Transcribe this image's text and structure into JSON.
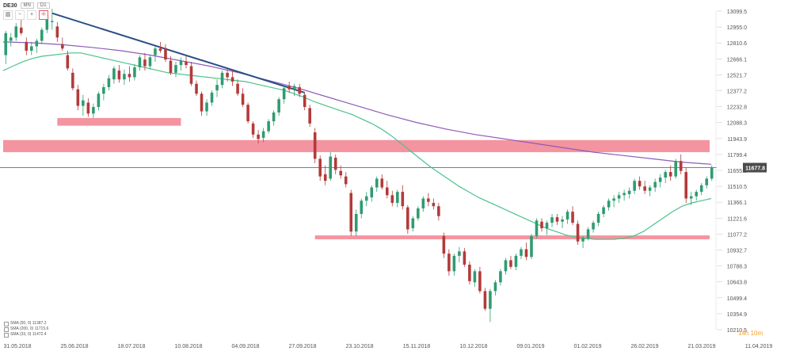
{
  "toolbar": {
    "symbol": "DE30",
    "timeframe_box": "D1",
    "aux_box": "MN",
    "buttons": [
      "bar-icon",
      "zoom-out-icon",
      "zoom-in-icon",
      "crosshair-icon"
    ]
  },
  "current_price_label": "11677.8",
  "timer_label": "14h 10m",
  "indicators": [
    {
      "label": "SMA (50, 0) 11387.2"
    },
    {
      "label": "SMA (200, 0) 11715.6"
    },
    {
      "label": "SMA (33, 0) 11472.4"
    }
  ],
  "colors": {
    "bull": "#2e9c70",
    "bear": "#b33a3a",
    "sma50": "#4cc28c",
    "sma200": "#8d5cb8",
    "trendline": "#2c4f86",
    "zone": "#f07080",
    "price_line": "#555555"
  },
  "chart_data": {
    "type": "candlestick",
    "symbol": "DE30",
    "y_ticks": [
      13099.5,
      12955.0,
      12810.6,
      12666.1,
      12521.7,
      12377.2,
      12232.8,
      12088.3,
      11943.9,
      11799.4,
      11655.0,
      11510.5,
      11366.1,
      11221.6,
      11077.2,
      10932.7,
      10788.3,
      10643.8,
      10499.4,
      10354.9,
      10210.5
    ],
    "ylim": [
      10210.5,
      13099.5
    ],
    "x_labels": [
      "31.05.2018",
      "25.06.2018",
      "18.07.2018",
      "10.08.2018",
      "04.09.2018",
      "27.09.2018",
      "23.10.2018",
      "15.11.2018",
      "10.12.2018",
      "09.01.2019",
      "01.02.2019",
      "26.02.2019",
      "21.03.2019",
      "11.04.2019"
    ],
    "candles": [
      {
        "o": 12700,
        "h": 12920,
        "l": 12620,
        "c": 12900
      },
      {
        "o": 12830,
        "h": 12900,
        "l": 12780,
        "c": 12860
      },
      {
        "o": 12860,
        "h": 12990,
        "l": 12830,
        "c": 12960
      },
      {
        "o": 12950,
        "h": 13020,
        "l": 12880,
        "c": 12900
      },
      {
        "o": 12820,
        "h": 12860,
        "l": 12700,
        "c": 12740
      },
      {
        "o": 12740,
        "h": 12820,
        "l": 12700,
        "c": 12780
      },
      {
        "o": 12780,
        "h": 12850,
        "l": 12720,
        "c": 12830
      },
      {
        "o": 12830,
        "h": 12950,
        "l": 12800,
        "c": 12930
      },
      {
        "o": 12930,
        "h": 13080,
        "l": 12900,
        "c": 13050
      },
      {
        "o": 13000,
        "h": 13120,
        "l": 12930,
        "c": 13010
      },
      {
        "o": 12960,
        "h": 13000,
        "l": 12820,
        "c": 12860
      },
      {
        "o": 12800,
        "h": 12860,
        "l": 12740,
        "c": 12760
      },
      {
        "o": 12700,
        "h": 12740,
        "l": 12560,
        "c": 12580
      },
      {
        "o": 12540,
        "h": 12580,
        "l": 12380,
        "c": 12400
      },
      {
        "o": 12390,
        "h": 12430,
        "l": 12200,
        "c": 12240
      },
      {
        "o": 12240,
        "h": 12340,
        "l": 12150,
        "c": 12290
      },
      {
        "o": 12270,
        "h": 12310,
        "l": 12140,
        "c": 12170
      },
      {
        "o": 12170,
        "h": 12260,
        "l": 12130,
        "c": 12230
      },
      {
        "o": 12230,
        "h": 12370,
        "l": 12200,
        "c": 12350
      },
      {
        "o": 12350,
        "h": 12440,
        "l": 12290,
        "c": 12410
      },
      {
        "o": 12410,
        "h": 12520,
        "l": 12380,
        "c": 12490
      },
      {
        "o": 12480,
        "h": 12600,
        "l": 12440,
        "c": 12580
      },
      {
        "o": 12560,
        "h": 12610,
        "l": 12450,
        "c": 12480
      },
      {
        "o": 12480,
        "h": 12570,
        "l": 12430,
        "c": 12530
      },
      {
        "o": 12530,
        "h": 12600,
        "l": 12460,
        "c": 12500
      },
      {
        "o": 12500,
        "h": 12620,
        "l": 12470,
        "c": 12590
      },
      {
        "o": 12590,
        "h": 12700,
        "l": 12560,
        "c": 12680
      },
      {
        "o": 12660,
        "h": 12720,
        "l": 12560,
        "c": 12600
      },
      {
        "o": 12600,
        "h": 12700,
        "l": 12570,
        "c": 12680
      },
      {
        "o": 12700,
        "h": 12780,
        "l": 12640,
        "c": 12760
      },
      {
        "o": 12760,
        "h": 12820,
        "l": 12720,
        "c": 12740
      },
      {
        "o": 12760,
        "h": 12800,
        "l": 12640,
        "c": 12660
      },
      {
        "o": 12650,
        "h": 12690,
        "l": 12520,
        "c": 12540
      },
      {
        "o": 12540,
        "h": 12640,
        "l": 12500,
        "c": 12610
      },
      {
        "o": 12610,
        "h": 12680,
        "l": 12560,
        "c": 12650
      },
      {
        "o": 12640,
        "h": 12690,
        "l": 12580,
        "c": 12610
      },
      {
        "o": 12600,
        "h": 12640,
        "l": 12420,
        "c": 12440
      },
      {
        "o": 12440,
        "h": 12470,
        "l": 12330,
        "c": 12350
      },
      {
        "o": 12350,
        "h": 12370,
        "l": 12150,
        "c": 12190
      },
      {
        "o": 12190,
        "h": 12300,
        "l": 12150,
        "c": 12270
      },
      {
        "o": 12270,
        "h": 12380,
        "l": 12240,
        "c": 12360
      },
      {
        "o": 12380,
        "h": 12480,
        "l": 12320,
        "c": 12430
      },
      {
        "o": 12430,
        "h": 12560,
        "l": 12400,
        "c": 12540
      },
      {
        "o": 12540,
        "h": 12580,
        "l": 12460,
        "c": 12500
      },
      {
        "o": 12500,
        "h": 12560,
        "l": 12420,
        "c": 12460
      },
      {
        "o": 12440,
        "h": 12480,
        "l": 12330,
        "c": 12350
      },
      {
        "o": 12350,
        "h": 12400,
        "l": 12230,
        "c": 12250
      },
      {
        "o": 12250,
        "h": 12270,
        "l": 12080,
        "c": 12100
      },
      {
        "o": 12080,
        "h": 12100,
        "l": 11950,
        "c": 11980
      },
      {
        "o": 11980,
        "h": 12020,
        "l": 11900,
        "c": 11940
      },
      {
        "o": 11950,
        "h": 12040,
        "l": 11910,
        "c": 12010
      },
      {
        "o": 12010,
        "h": 12120,
        "l": 11990,
        "c": 12100
      },
      {
        "o": 12100,
        "h": 12200,
        "l": 12060,
        "c": 12180
      },
      {
        "o": 12180,
        "h": 12320,
        "l": 12150,
        "c": 12300
      },
      {
        "o": 12300,
        "h": 12420,
        "l": 12260,
        "c": 12400
      },
      {
        "o": 12420,
        "h": 12460,
        "l": 12360,
        "c": 12390
      },
      {
        "o": 12390,
        "h": 12440,
        "l": 12330,
        "c": 12420
      },
      {
        "o": 12410,
        "h": 12440,
        "l": 12320,
        "c": 12350
      },
      {
        "o": 12340,
        "h": 12360,
        "l": 12200,
        "c": 12230
      },
      {
        "o": 12220,
        "h": 12250,
        "l": 12050,
        "c": 12080
      },
      {
        "o": 12000,
        "h": 12040,
        "l": 11720,
        "c": 11760
      },
      {
        "o": 11760,
        "h": 11790,
        "l": 11560,
        "c": 11600
      },
      {
        "o": 11620,
        "h": 11700,
        "l": 11520,
        "c": 11560
      },
      {
        "o": 11580,
        "h": 11820,
        "l": 11560,
        "c": 11780
      },
      {
        "o": 11770,
        "h": 11800,
        "l": 11620,
        "c": 11660
      },
      {
        "o": 11650,
        "h": 11700,
        "l": 11580,
        "c": 11610
      },
      {
        "o": 11600,
        "h": 11640,
        "l": 11500,
        "c": 11530
      },
      {
        "o": 11450,
        "h": 11480,
        "l": 11060,
        "c": 11100
      },
      {
        "o": 11100,
        "h": 11300,
        "l": 11060,
        "c": 11260
      },
      {
        "o": 11260,
        "h": 11400,
        "l": 11220,
        "c": 11380
      },
      {
        "o": 11380,
        "h": 11460,
        "l": 11330,
        "c": 11420
      },
      {
        "o": 11410,
        "h": 11520,
        "l": 11370,
        "c": 11500
      },
      {
        "o": 11500,
        "h": 11600,
        "l": 11460,
        "c": 11580
      },
      {
        "o": 11580,
        "h": 11620,
        "l": 11480,
        "c": 11500
      },
      {
        "o": 11500,
        "h": 11560,
        "l": 11400,
        "c": 11430
      },
      {
        "o": 11430,
        "h": 11470,
        "l": 11330,
        "c": 11360
      },
      {
        "o": 11360,
        "h": 11480,
        "l": 11320,
        "c": 11460
      },
      {
        "o": 11460,
        "h": 11520,
        "l": 11300,
        "c": 11330
      },
      {
        "o": 11320,
        "h": 11340,
        "l": 11080,
        "c": 11120
      },
      {
        "o": 11130,
        "h": 11240,
        "l": 11100,
        "c": 11220
      },
      {
        "o": 11220,
        "h": 11330,
        "l": 11200,
        "c": 11310
      },
      {
        "o": 11310,
        "h": 11420,
        "l": 11280,
        "c": 11400
      },
      {
        "o": 11400,
        "h": 11450,
        "l": 11330,
        "c": 11370
      },
      {
        "o": 11360,
        "h": 11400,
        "l": 11300,
        "c": 11330
      },
      {
        "o": 11330,
        "h": 11360,
        "l": 11200,
        "c": 11240
      },
      {
        "o": 11060,
        "h": 11090,
        "l": 10860,
        "c": 10900
      },
      {
        "o": 10900,
        "h": 10940,
        "l": 10700,
        "c": 10740
      },
      {
        "o": 10740,
        "h": 10900,
        "l": 10700,
        "c": 10880
      },
      {
        "o": 10880,
        "h": 10960,
        "l": 10820,
        "c": 10920
      },
      {
        "o": 10920,
        "h": 10950,
        "l": 10780,
        "c": 10800
      },
      {
        "o": 10800,
        "h": 10830,
        "l": 10620,
        "c": 10650
      },
      {
        "o": 10640,
        "h": 10760,
        "l": 10600,
        "c": 10740
      },
      {
        "o": 10740,
        "h": 10780,
        "l": 10540,
        "c": 10560
      },
      {
        "o": 10560,
        "h": 10590,
        "l": 10380,
        "c": 10400
      },
      {
        "o": 10400,
        "h": 10580,
        "l": 10280,
        "c": 10560
      },
      {
        "o": 10560,
        "h": 10660,
        "l": 10520,
        "c": 10640
      },
      {
        "o": 10640,
        "h": 10760,
        "l": 10610,
        "c": 10740
      },
      {
        "o": 10740,
        "h": 10860,
        "l": 10710,
        "c": 10840
      },
      {
        "o": 10840,
        "h": 10880,
        "l": 10760,
        "c": 10780
      },
      {
        "o": 10780,
        "h": 10900,
        "l": 10750,
        "c": 10880
      },
      {
        "o": 10880,
        "h": 10960,
        "l": 10850,
        "c": 10940
      },
      {
        "o": 10940,
        "h": 11000,
        "l": 10840,
        "c": 10870
      },
      {
        "o": 10870,
        "h": 11080,
        "l": 10850,
        "c": 11060
      },
      {
        "o": 11060,
        "h": 11220,
        "l": 11040,
        "c": 11200
      },
      {
        "o": 11190,
        "h": 11220,
        "l": 11100,
        "c": 11130
      },
      {
        "o": 11130,
        "h": 11200,
        "l": 11070,
        "c": 11180
      },
      {
        "o": 11180,
        "h": 11260,
        "l": 11140,
        "c": 11230
      },
      {
        "o": 11230,
        "h": 11260,
        "l": 11160,
        "c": 11190
      },
      {
        "o": 11190,
        "h": 11240,
        "l": 11130,
        "c": 11210
      },
      {
        "o": 11210,
        "h": 11300,
        "l": 11170,
        "c": 11280
      },
      {
        "o": 11280,
        "h": 11330,
        "l": 11160,
        "c": 11180
      },
      {
        "o": 11170,
        "h": 11200,
        "l": 10980,
        "c": 11010
      },
      {
        "o": 11010,
        "h": 11060,
        "l": 10950,
        "c": 11040
      },
      {
        "o": 11040,
        "h": 11140,
        "l": 11020,
        "c": 11120
      },
      {
        "o": 11120,
        "h": 11200,
        "l": 11090,
        "c": 11180
      },
      {
        "o": 11180,
        "h": 11280,
        "l": 11150,
        "c": 11260
      },
      {
        "o": 11260,
        "h": 11340,
        "l": 11230,
        "c": 11320
      },
      {
        "o": 11320,
        "h": 11400,
        "l": 11290,
        "c": 11380
      },
      {
        "o": 11380,
        "h": 11430,
        "l": 11320,
        "c": 11400
      },
      {
        "o": 11400,
        "h": 11460,
        "l": 11360,
        "c": 11430
      },
      {
        "o": 11430,
        "h": 11480,
        "l": 11380,
        "c": 11450
      },
      {
        "o": 11440,
        "h": 11500,
        "l": 11400,
        "c": 11470
      },
      {
        "o": 11470,
        "h": 11580,
        "l": 11440,
        "c": 11560
      },
      {
        "o": 11560,
        "h": 11600,
        "l": 11480,
        "c": 11510
      },
      {
        "o": 11510,
        "h": 11560,
        "l": 11440,
        "c": 11470
      },
      {
        "o": 11470,
        "h": 11520,
        "l": 11420,
        "c": 11500
      },
      {
        "o": 11500,
        "h": 11580,
        "l": 11460,
        "c": 11550
      },
      {
        "o": 11550,
        "h": 11620,
        "l": 11500,
        "c": 11590
      },
      {
        "o": 11590,
        "h": 11660,
        "l": 11540,
        "c": 11640
      },
      {
        "o": 11640,
        "h": 11700,
        "l": 11560,
        "c": 11600
      },
      {
        "o": 11600,
        "h": 11760,
        "l": 11580,
        "c": 11740
      },
      {
        "o": 11740,
        "h": 11800,
        "l": 11620,
        "c": 11650
      },
      {
        "o": 11640,
        "h": 11680,
        "l": 11360,
        "c": 11400
      },
      {
        "o": 11400,
        "h": 11460,
        "l": 11340,
        "c": 11420
      },
      {
        "o": 11420,
        "h": 11480,
        "l": 11380,
        "c": 11460
      },
      {
        "o": 11460,
        "h": 11540,
        "l": 11430,
        "c": 11520
      },
      {
        "o": 11520,
        "h": 11600,
        "l": 11490,
        "c": 11580
      },
      {
        "o": 11580,
        "h": 11700,
        "l": 11560,
        "c": 11680
      }
    ],
    "sma50": [
      12560,
      12600,
      12640,
      12670,
      12690,
      12700,
      12710,
      12720,
      12720,
      12700,
      12680,
      12660,
      12640,
      12620,
      12600,
      12580,
      12560,
      12540,
      12530,
      12520,
      12510,
      12500,
      12490,
      12480,
      12470,
      12460,
      12440,
      12420,
      12400,
      12380,
      12350,
      12320,
      12280,
      12250,
      12220,
      12190,
      12160,
      12120,
      12080,
      12030,
      11970,
      11900,
      11830,
      11760,
      11690,
      11630,
      11570,
      11510,
      11460,
      11410,
      11370,
      11330,
      11290,
      11250,
      11210,
      11170,
      11130,
      11100,
      11070,
      11050,
      11040,
      11030,
      11030,
      11030,
      11040,
      11060,
      11100,
      11160,
      11220,
      11280,
      11330,
      11360,
      11380,
      11400
    ],
    "sma200": [
      12820,
      12812,
      12795,
      12770,
      12740,
      12700,
      12650,
      12600,
      12540,
      12470,
      12400,
      12320,
      12240,
      12160,
      12090,
      12030,
      11980,
      11940,
      11900,
      11860,
      11820,
      11790,
      11760,
      11730,
      11710
    ]
  }
}
